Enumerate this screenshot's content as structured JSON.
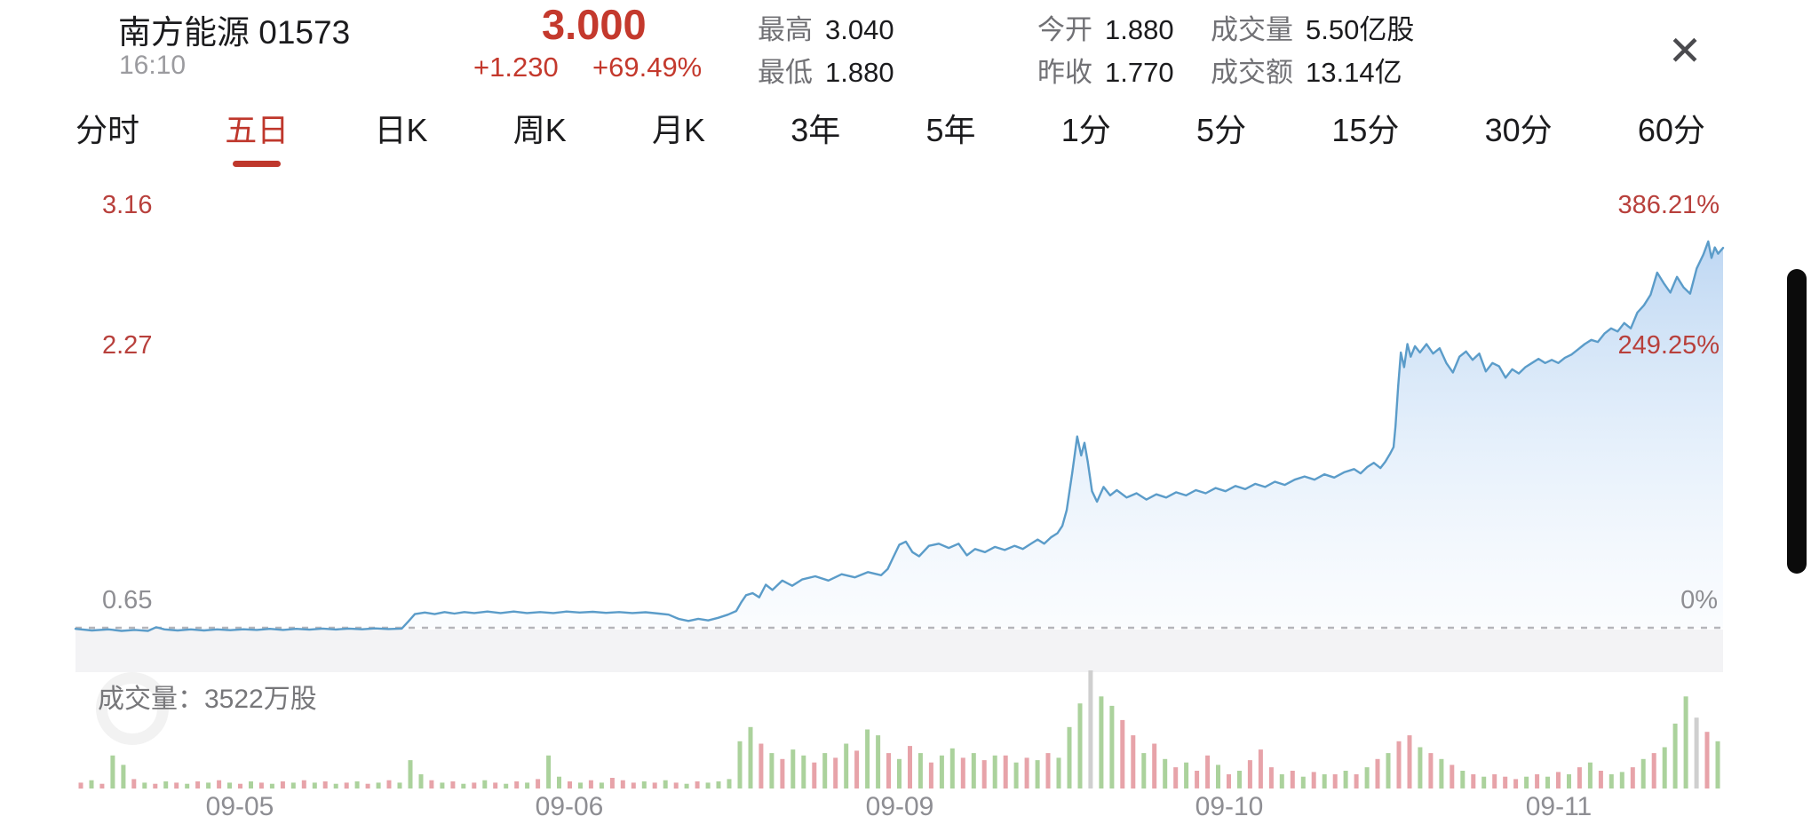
{
  "header": {
    "stock_name": "南方能源 01573",
    "time": "16:10",
    "price": "3.000",
    "change": "+1.230",
    "change_pct": "+69.49%",
    "stats": [
      {
        "label": "最高",
        "value": "3.040"
      },
      {
        "label": "最低",
        "value": "1.880"
      },
      {
        "label": "今开",
        "value": "1.880"
      },
      {
        "label": "昨收",
        "value": "1.770"
      },
      {
        "label": "成交量",
        "value": "5.50亿股"
      },
      {
        "label": "成交额",
        "value": "13.14亿"
      }
    ],
    "close_icon": "✕"
  },
  "tabs": {
    "items": [
      "分时",
      "五日",
      "日K",
      "周K",
      "月K",
      "3年",
      "5年",
      "1分",
      "5分",
      "15分",
      "30分",
      "60分"
    ],
    "active_index": 1
  },
  "chart": {
    "labels_left": [
      "3.16",
      "2.27",
      "0.65"
    ],
    "labels_right": [
      "386.21%",
      "249.25%",
      "0%"
    ],
    "volume_label": "成交量：3522万股",
    "colors": {
      "line": "#5b9cc9",
      "accent_red": "#c4392d",
      "axis_red": "#b8403c",
      "axis_gray": "#8e8e93",
      "baseline_dash": "#b5b5ba",
      "below_band": "#f3f3f5",
      "vol_up": "#abd29c",
      "vol_down": "#e7a3a9",
      "vol_neutral": "#cfcfcf"
    }
  },
  "chart_data": {
    "type": "line",
    "title": "南方能源 01573 五日分时走势",
    "x_labels": [
      "09-05",
      "09-06",
      "09-09",
      "09-10",
      "09-11"
    ],
    "y_axis_left_prices": [
      3.16,
      2.27,
      0.65
    ],
    "y_axis_right_pct": [
      386.21,
      249.25,
      0
    ],
    "baseline_price": 0.65,
    "last_price": 3.0,
    "day_high": 3.04,
    "day_low": 1.88,
    "legend": "none",
    "grid": "baseline-dashed-only",
    "series": [
      {
        "name": "涨跌幅%",
        "points": [
          [
            0.0,
            -1
          ],
          [
            0.05,
            -2.5
          ],
          [
            0.1,
            -1.5
          ],
          [
            0.14,
            -3
          ],
          [
            0.18,
            -2
          ],
          [
            0.22,
            -3
          ],
          [
            0.245,
            0.5
          ],
          [
            0.27,
            -1.5
          ],
          [
            0.31,
            -2.5
          ],
          [
            0.35,
            -1.5
          ],
          [
            0.39,
            -2.5
          ],
          [
            0.43,
            -1.5
          ],
          [
            0.47,
            -2.3
          ],
          [
            0.51,
            -1.4
          ],
          [
            0.55,
            -2
          ],
          [
            0.59,
            -1
          ],
          [
            0.63,
            -2
          ],
          [
            0.67,
            -1
          ],
          [
            0.71,
            -1.8
          ],
          [
            0.75,
            -0.8
          ],
          [
            0.79,
            -1.6
          ],
          [
            0.83,
            -0.8
          ],
          [
            0.87,
            -1.4
          ],
          [
            0.91,
            -0.6
          ],
          [
            0.95,
            -1.2
          ],
          [
            0.99,
            -0.8
          ],
          [
            1.01,
            6
          ],
          [
            1.03,
            13
          ],
          [
            1.06,
            14.5
          ],
          [
            1.09,
            13
          ],
          [
            1.12,
            15
          ],
          [
            1.15,
            13.5
          ],
          [
            1.18,
            15
          ],
          [
            1.21,
            14
          ],
          [
            1.25,
            15.5
          ],
          [
            1.29,
            14
          ],
          [
            1.33,
            15.5
          ],
          [
            1.37,
            14
          ],
          [
            1.41,
            15
          ],
          [
            1.45,
            14
          ],
          [
            1.49,
            15.5
          ],
          [
            1.53,
            14.5
          ],
          [
            1.57,
            15.2
          ],
          [
            1.61,
            14.2
          ],
          [
            1.65,
            15
          ],
          [
            1.69,
            14
          ],
          [
            1.73,
            14.8
          ],
          [
            1.77,
            13.5
          ],
          [
            1.8,
            12.5
          ],
          [
            1.83,
            8.5
          ],
          [
            1.86,
            6.5
          ],
          [
            1.89,
            8.5
          ],
          [
            1.92,
            7
          ],
          [
            1.95,
            9.5
          ],
          [
            1.98,
            12.5
          ],
          [
            2.005,
            16
          ],
          [
            2.02,
            24
          ],
          [
            2.035,
            31
          ],
          [
            2.055,
            33
          ],
          [
            2.075,
            29
          ],
          [
            2.095,
            41
          ],
          [
            2.115,
            36
          ],
          [
            2.145,
            45
          ],
          [
            2.175,
            40
          ],
          [
            2.205,
            46
          ],
          [
            2.245,
            49
          ],
          [
            2.285,
            45
          ],
          [
            2.325,
            51
          ],
          [
            2.365,
            48
          ],
          [
            2.405,
            53
          ],
          [
            2.445,
            50
          ],
          [
            2.465,
            56
          ],
          [
            2.48,
            66
          ],
          [
            2.5,
            79
          ],
          [
            2.52,
            82
          ],
          [
            2.54,
            72
          ],
          [
            2.56,
            68
          ],
          [
            2.59,
            78
          ],
          [
            2.62,
            80
          ],
          [
            2.65,
            76
          ],
          [
            2.68,
            80
          ],
          [
            2.705,
            69
          ],
          [
            2.73,
            75
          ],
          [
            2.76,
            72
          ],
          [
            2.79,
            77
          ],
          [
            2.82,
            74
          ],
          [
            2.85,
            78
          ],
          [
            2.875,
            75
          ],
          [
            2.9,
            80
          ],
          [
            2.92,
            84
          ],
          [
            2.94,
            80
          ],
          [
            2.96,
            86
          ],
          [
            2.98,
            90
          ],
          [
            2.995,
            97
          ],
          [
            3.008,
            112
          ],
          [
            3.025,
            148
          ],
          [
            3.04,
            182
          ],
          [
            3.052,
            164
          ],
          [
            3.062,
            176
          ],
          [
            3.072,
            158
          ],
          [
            3.085,
            130
          ],
          [
            3.1,
            120
          ],
          [
            3.12,
            134
          ],
          [
            3.14,
            126
          ],
          [
            3.16,
            131
          ],
          [
            3.19,
            124
          ],
          [
            3.22,
            128
          ],
          [
            3.25,
            122
          ],
          [
            3.28,
            127
          ],
          [
            3.31,
            124
          ],
          [
            3.34,
            129
          ],
          [
            3.37,
            126
          ],
          [
            3.4,
            131
          ],
          [
            3.43,
            128
          ],
          [
            3.46,
            133
          ],
          [
            3.49,
            130
          ],
          [
            3.52,
            135
          ],
          [
            3.55,
            132
          ],
          [
            3.58,
            137
          ],
          [
            3.61,
            134
          ],
          [
            3.64,
            139
          ],
          [
            3.67,
            136
          ],
          [
            3.7,
            141
          ],
          [
            3.73,
            144
          ],
          [
            3.76,
            141
          ],
          [
            3.79,
            146
          ],
          [
            3.82,
            143
          ],
          [
            3.85,
            148
          ],
          [
            3.88,
            151
          ],
          [
            3.9,
            147
          ],
          [
            3.92,
            153
          ],
          [
            3.94,
            157
          ],
          [
            3.96,
            152
          ],
          [
            3.975,
            158
          ],
          [
            3.99,
            166
          ],
          [
            4.0,
            172
          ],
          [
            4.006,
            192
          ],
          [
            4.014,
            230
          ],
          [
            4.022,
            262
          ],
          [
            4.032,
            248
          ],
          [
            4.042,
            270
          ],
          [
            4.052,
            258
          ],
          [
            4.065,
            268
          ],
          [
            4.08,
            262
          ],
          [
            4.1,
            270
          ],
          [
            4.12,
            261
          ],
          [
            4.14,
            266
          ],
          [
            4.16,
            252
          ],
          [
            4.18,
            243
          ],
          [
            4.2,
            258
          ],
          [
            4.22,
            263
          ],
          [
            4.24,
            255
          ],
          [
            4.26,
            261
          ],
          [
            4.28,
            244
          ],
          [
            4.3,
            252
          ],
          [
            4.32,
            249
          ],
          [
            4.34,
            238
          ],
          [
            4.36,
            246
          ],
          [
            4.38,
            242
          ],
          [
            4.4,
            248
          ],
          [
            4.42,
            252
          ],
          [
            4.44,
            256
          ],
          [
            4.46,
            252
          ],
          [
            4.48,
            255
          ],
          [
            4.5,
            252
          ],
          [
            4.52,
            257
          ],
          [
            4.54,
            260
          ],
          [
            4.56,
            265
          ],
          [
            4.58,
            270
          ],
          [
            4.6,
            274
          ],
          [
            4.62,
            272
          ],
          [
            4.64,
            280
          ],
          [
            4.66,
            285
          ],
          [
            4.68,
            282
          ],
          [
            4.7,
            290
          ],
          [
            4.72,
            285
          ],
          [
            4.74,
            300
          ],
          [
            4.76,
            307
          ],
          [
            4.78,
            317
          ],
          [
            4.8,
            338
          ],
          [
            4.82,
            328
          ],
          [
            4.84,
            319
          ],
          [
            4.86,
            334
          ],
          [
            4.88,
            324
          ],
          [
            4.9,
            318
          ],
          [
            4.92,
            342
          ],
          [
            4.94,
            355
          ],
          [
            4.955,
            367.7
          ],
          [
            4.965,
            352
          ],
          [
            4.975,
            362
          ],
          [
            4.985,
            356
          ],
          [
            5.0,
            361.5
          ]
        ]
      }
    ],
    "volume": {
      "unit": "万股",
      "caption_value": "3522万股",
      "days": [
        {
          "day": 0,
          "heights": [
            5,
            7,
            4,
            28,
            20,
            8,
            5,
            4,
            6,
            5,
            4,
            6,
            5,
            7,
            5,
            4,
            6,
            5,
            4,
            6,
            5,
            7,
            5,
            6,
            4,
            5,
            6,
            4,
            5,
            7,
            5
          ],
          "colors": "rgrggrgrgrgrgrgrgrgrgrgrgrgrgrg"
        },
        {
          "day": 1,
          "heights": [
            24,
            12,
            7,
            5,
            6,
            4,
            5,
            7,
            5,
            4,
            6,
            5,
            8,
            28,
            10,
            6,
            5,
            7,
            5,
            9,
            7,
            5,
            6,
            5,
            7,
            5,
            4,
            6,
            5,
            6,
            8
          ],
          "colors": "ggrgrgrgrgrgrggrgrgrrrgrgrgrggg"
        },
        {
          "day": 2,
          "heights": [
            40,
            52,
            38,
            30,
            25,
            33,
            28,
            22,
            30,
            26,
            38,
            32,
            50,
            45,
            30,
            25,
            36,
            30,
            22,
            28,
            34,
            26,
            30,
            24,
            28,
            28,
            22,
            26,
            24,
            30,
            26
          ],
          "colors": "ggrgrggrgrgrggrgrgrggrgrgrgrgrg"
        },
        {
          "day": 3,
          "heights": [
            52,
            72,
            100,
            78,
            70,
            58,
            45,
            30,
            38,
            25,
            18,
            22,
            15,
            28,
            20,
            12,
            15,
            24,
            33,
            18,
            12,
            15,
            10,
            14,
            12,
            12,
            15,
            12,
            18,
            25,
            30
          ],
          "colors": "ggnggrrgrgrgrrgrgrrrgrgrgrgrgrg"
        },
        {
          "day": 4,
          "heights": [
            40,
            45,
            35,
            30,
            25,
            20,
            15,
            12,
            10,
            12,
            10,
            8,
            10,
            12,
            10,
            14,
            12,
            18,
            22,
            15,
            12,
            14,
            18,
            25,
            30,
            35,
            55,
            78,
            60,
            48,
            40
          ],
          "colors": "rrgrgrgrgrrrgrgrgrgrggrgrgggnrg"
        }
      ]
    }
  }
}
